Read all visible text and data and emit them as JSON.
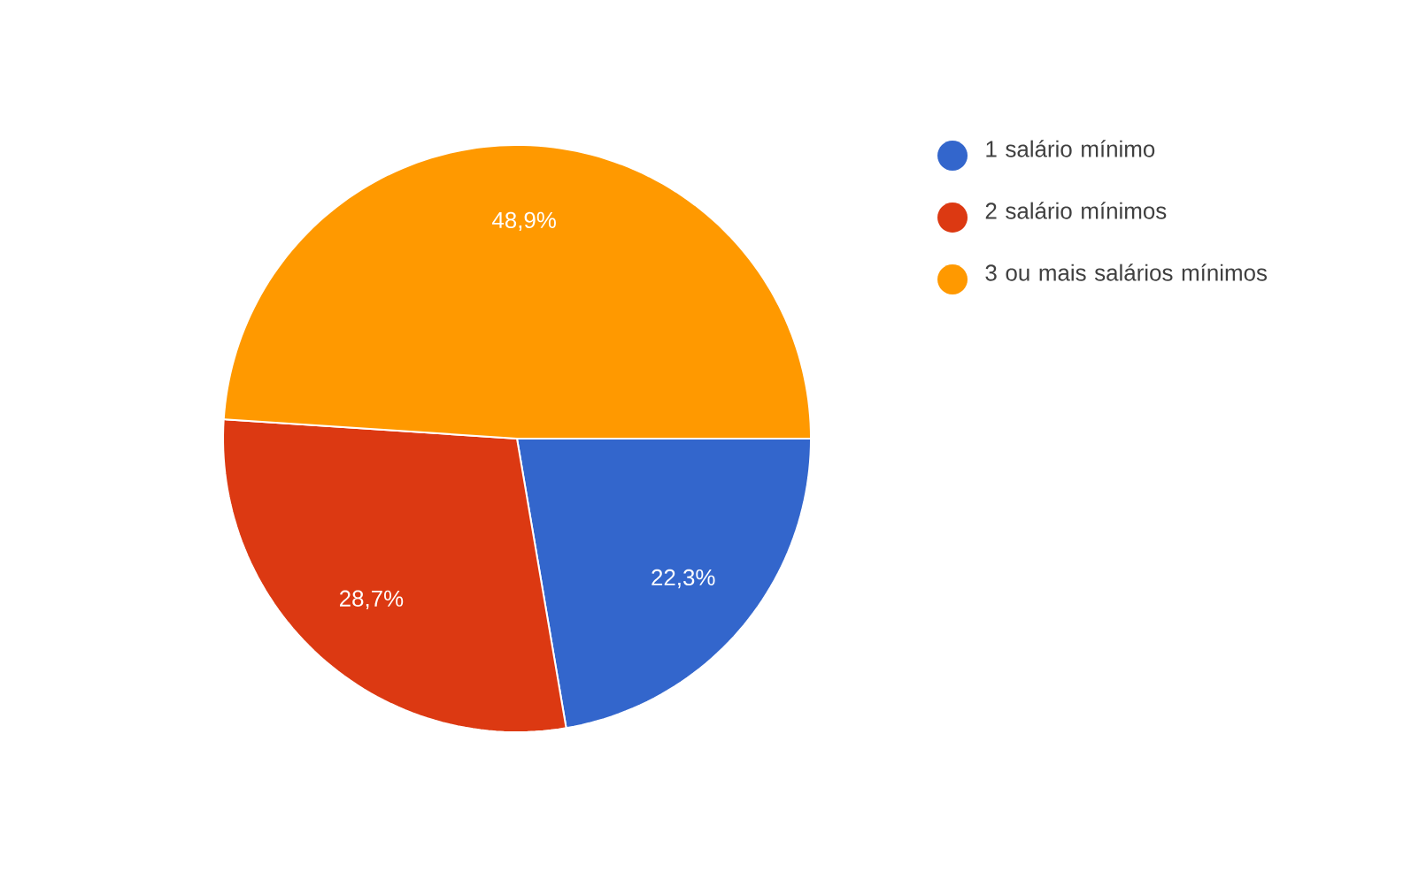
{
  "chart_data": {
    "type": "pie",
    "categories": [
      "1 salário mínimo",
      "2 salário mínimos",
      "3 ou mais salários mínimos"
    ],
    "values": [
      22.3,
      28.7,
      48.9
    ],
    "value_labels": [
      "22,3%",
      "28,7%",
      "48,9%"
    ],
    "colors": [
      "#3366cc",
      "#dc3912",
      "#ff9900"
    ],
    "legend": "right"
  }
}
